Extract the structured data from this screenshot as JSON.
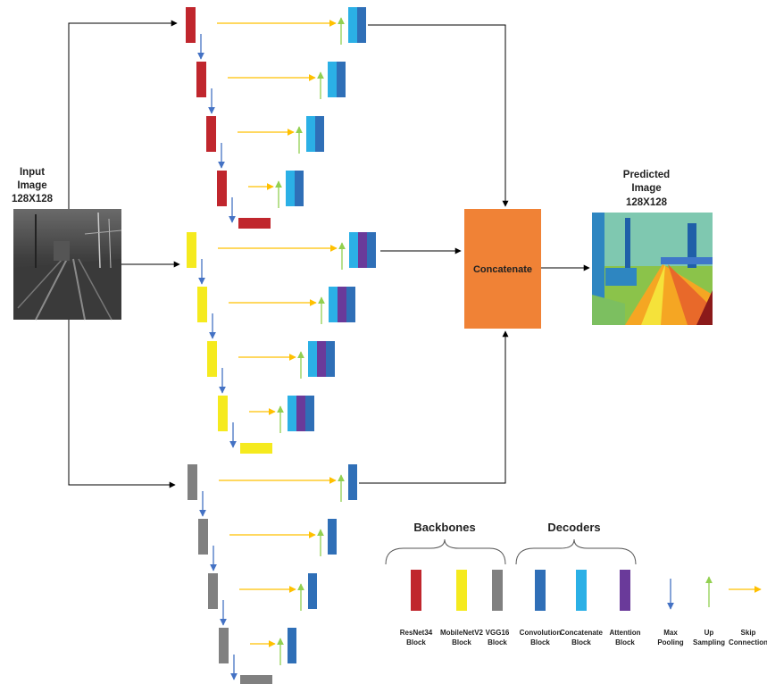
{
  "input": {
    "title_line1": "Input",
    "title_line2": "Image",
    "size": "128X128"
  },
  "output": {
    "title_line1": "Predicted",
    "title_line2": "Image",
    "size": "128X128"
  },
  "concat": {
    "label": "Concatenate",
    "color": "#F08236"
  },
  "colors": {
    "resnet": "#C0262D",
    "mobilenet": "#F5EA1E",
    "vgg": "#808080",
    "conv": "#2F6FB7",
    "concat_block": "#2BB0E6",
    "attention": "#6A3A9A",
    "pool_arrow": "#4472C4",
    "up_arrow": "#92D050",
    "skip_arrow": "#FFC000",
    "flow_arrow": "#000000"
  },
  "legend": {
    "backbones": "Backbones",
    "decoders": "Decoders",
    "items": [
      {
        "line1": "ResNet34",
        "line2": "Block",
        "icon": "resnet-block-swatch"
      },
      {
        "line1": "MobileNetV2",
        "line2": "Block",
        "icon": "mobilenet-block-swatch"
      },
      {
        "line1": "VGG16",
        "line2": "Block",
        "icon": "vgg-block-swatch"
      },
      {
        "line1": "Convolution",
        "line2": "Block",
        "icon": "convolution-block-swatch"
      },
      {
        "line1": "Concatenate",
        "line2": "Block",
        "icon": "concatenate-block-swatch"
      },
      {
        "line1": "Attention",
        "line2": "Block",
        "icon": "attention-block-swatch"
      },
      {
        "line1": "Max",
        "line2": "Pooling",
        "icon": "max-pooling-arrow-icon"
      },
      {
        "line1": "Up",
        "line2": "Sampling",
        "icon": "up-sampling-arrow-icon"
      },
      {
        "line1": "Skip",
        "line2": "Connection",
        "icon": "skip-connection-arrow-icon"
      }
    ]
  }
}
